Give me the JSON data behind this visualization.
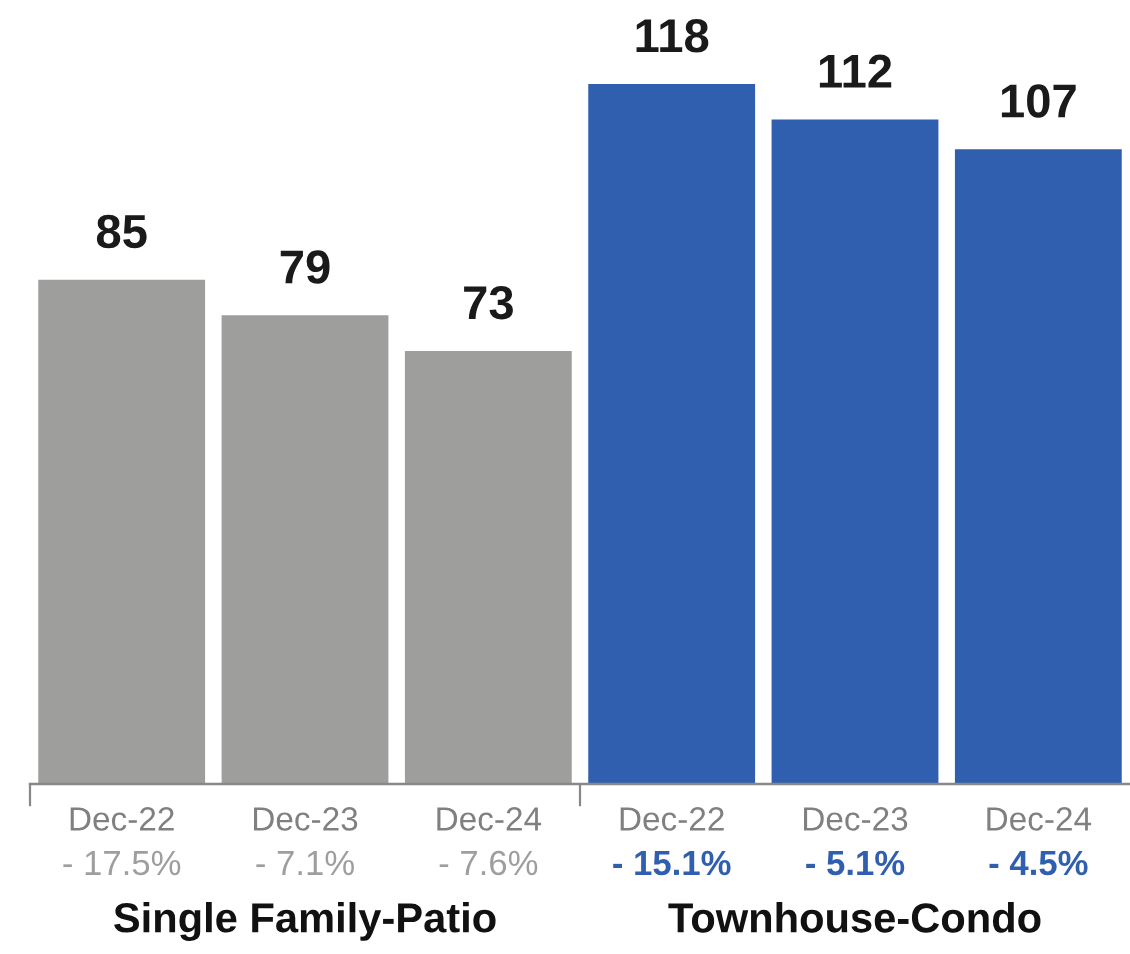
{
  "chart_data": {
    "type": "bar",
    "categories": [
      "Dec-22",
      "Dec-23",
      "Dec-24",
      "Dec-22",
      "Dec-23",
      "Dec-24"
    ],
    "values": [
      85,
      79,
      73,
      118,
      112,
      107
    ],
    "colors": [
      "#9e9e9c",
      "#9e9e9c",
      "#9e9e9c",
      "#2f5fae",
      "#2f5fae",
      "#2f5fae"
    ],
    "data_labels": true,
    "tick_labels": "x",
    "annotations": [
      "- 17.5%",
      "- 7.1%",
      "- 7.6%",
      "- 15.1%",
      "- 5.1%",
      "- 4.5%",
      "Single Family-Patio",
      "Townhouse-Condo"
    ]
  }
}
